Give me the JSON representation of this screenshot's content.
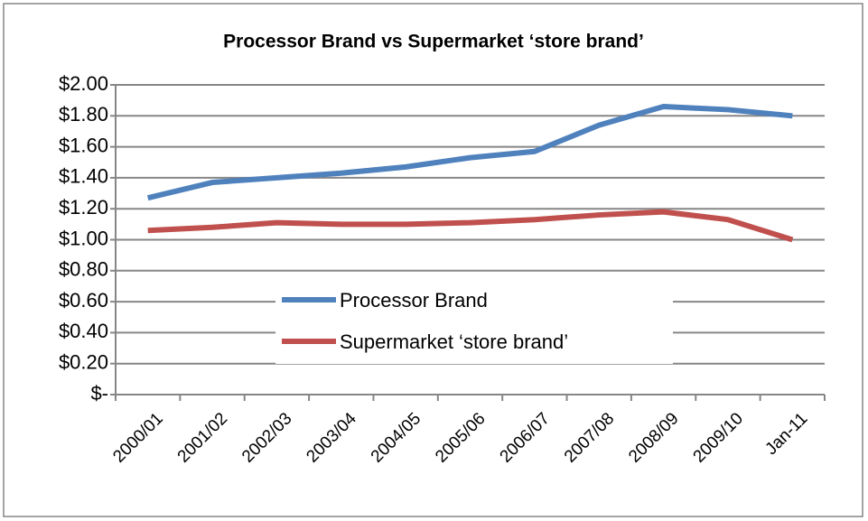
{
  "chart_data": {
    "type": "line",
    "title": "Processor Brand vs Supermarket ‘store brand’",
    "categories": [
      "2000/01",
      "2001/02",
      "2002/03",
      "2003/04",
      "2004/05",
      "2005/06",
      "2006/07",
      "2007/08",
      "2008/09",
      "2009/10",
      "Jan-11"
    ],
    "series": [
      {
        "name": "Processor Brand",
        "color": "#4f81bd",
        "values": [
          1.27,
          1.37,
          1.4,
          1.43,
          1.47,
          1.53,
          1.57,
          1.74,
          1.86,
          1.84,
          1.8
        ]
      },
      {
        "name": "Supermarket ‘store brand’",
        "color": "#c0504d",
        "values": [
          1.06,
          1.08,
          1.11,
          1.1,
          1.1,
          1.11,
          1.13,
          1.16,
          1.18,
          1.13,
          1.0
        ]
      }
    ],
    "ylim": [
      0,
      2
    ],
    "yticks": [
      {
        "value": 0,
        "label": "$-"
      },
      {
        "value": 0.2,
        "label": "$0.20"
      },
      {
        "value": 0.4,
        "label": "$0.40"
      },
      {
        "value": 0.6,
        "label": "$0.60"
      },
      {
        "value": 0.8,
        "label": "$0.80"
      },
      {
        "value": 1,
        "label": "$1.00"
      },
      {
        "value": 1.2,
        "label": "$1.20"
      },
      {
        "value": 1.4,
        "label": "$1.40"
      },
      {
        "value": 1.6,
        "label": "$1.60"
      },
      {
        "value": 1.8,
        "label": "$1.80"
      },
      {
        "value": 2,
        "label": "$2.00"
      }
    ],
    "grid": true
  }
}
